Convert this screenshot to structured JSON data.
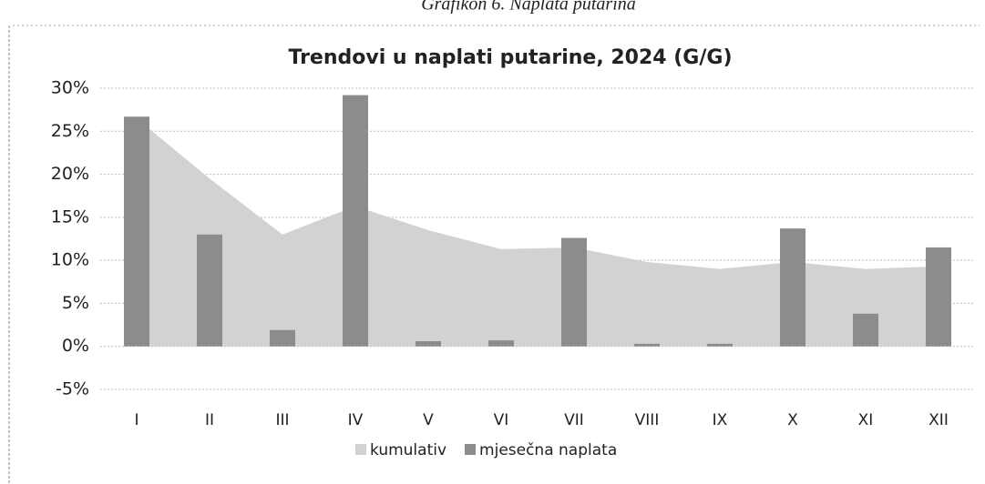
{
  "caption": "Grafikon 6. Naplata putarina",
  "chart_data": {
    "type": "bar",
    "title": "Trendovi u naplati putarine, 2024 (G/G)",
    "categories": [
      "I",
      "II",
      "III",
      "IV",
      "V",
      "VI",
      "VII",
      "VIII",
      "IX",
      "X",
      "XI",
      "XII"
    ],
    "series": [
      {
        "name": "kumulativ",
        "type": "area",
        "color": "#d2d2d2",
        "values": [
          26.5,
          19.5,
          13,
          16.3,
          13.5,
          11.3,
          11.5,
          9.8,
          9,
          9.8,
          9,
          9.3
        ]
      },
      {
        "name": "mjesečna naplata",
        "type": "bar",
        "color": "#8c8c8c",
        "values": [
          26.7,
          13,
          1.9,
          29.2,
          0.6,
          0.7,
          12.6,
          0.3,
          0.3,
          13.7,
          3.8,
          11.5
        ]
      }
    ],
    "ylim": [
      -5,
      30
    ],
    "yticks": [
      {
        "value": -5,
        "label": "-5%"
      },
      {
        "value": 0,
        "label": "0%"
      },
      {
        "value": 5,
        "label": "5%"
      },
      {
        "value": 10,
        "label": "10%"
      },
      {
        "value": 15,
        "label": "15%"
      },
      {
        "value": 20,
        "label": "20%"
      },
      {
        "value": 25,
        "label": "25%"
      },
      {
        "value": 30,
        "label": "30%"
      }
    ],
    "grid": true,
    "legend": "bottom"
  }
}
